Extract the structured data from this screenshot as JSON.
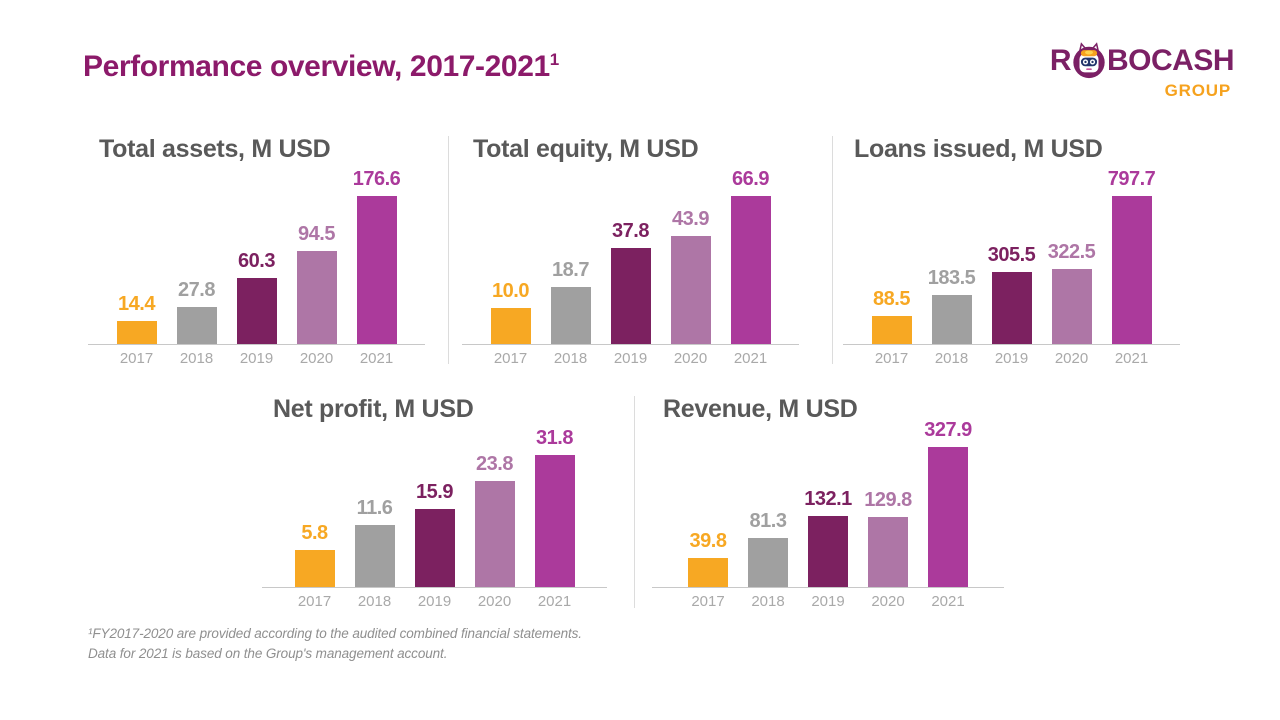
{
  "header": {
    "title": "Performance overview, 2017-2021",
    "title_superscript": "1"
  },
  "logo": {
    "wordmark_prefix": "R",
    "wordmark_suffix": "BOCASH",
    "subtitle": "GROUP",
    "wordmark_color": "#7B2065",
    "subtitle_color": "#F6A21E"
  },
  "footnote": {
    "line1": "¹FY2017-2020 are provided according to the audited combined financial statements.",
    "line2": "Data for 2021 is based on the Group's management account."
  },
  "colors": {
    "slide_title": "#8C1A6A",
    "chart_title": "#595959",
    "axis_line": "#C8C8C8",
    "year_label": "#A9A9A9",
    "divider": "#DCDCDC",
    "footnote": "#8F8F8F",
    "bar_palette": [
      "#F7A823",
      "#A0A0A0",
      "#7C2160",
      "#AE76A6",
      "#AB3A9B"
    ]
  },
  "chart_data": [
    {
      "type": "bar",
      "title": "Total assets, M USD",
      "categories": [
        "2017",
        "2018",
        "2019",
        "2020",
        "2021"
      ],
      "values": [
        14.4,
        27.8,
        60.3,
        94.5,
        176.6
      ],
      "ylim": [
        0,
        176.6
      ],
      "grid": false,
      "data_labels": true
    },
    {
      "type": "bar",
      "title": "Total equity, M USD",
      "categories": [
        "2017",
        "2018",
        "2019",
        "2020",
        "2021"
      ],
      "values": [
        10.0,
        18.7,
        37.8,
        43.9,
        66.9
      ],
      "ylim": [
        0,
        66.9
      ],
      "grid": false,
      "data_labels": true
    },
    {
      "type": "bar",
      "title": "Loans issued, M USD",
      "categories": [
        "2017",
        "2018",
        "2019",
        "2020",
        "2021"
      ],
      "values": [
        88.5,
        183.5,
        305.5,
        322.5,
        797.7
      ],
      "ylim": [
        0,
        797.7
      ],
      "grid": false,
      "data_labels": true
    },
    {
      "type": "bar",
      "title": "Net profit, M USD",
      "categories": [
        "2017",
        "2018",
        "2019",
        "2020",
        "2021"
      ],
      "values": [
        5.8,
        11.6,
        15.9,
        23.8,
        31.8
      ],
      "ylim": [
        0,
        31.8
      ],
      "grid": false,
      "data_labels": true
    },
    {
      "type": "bar",
      "title": "Revenue, M USD",
      "categories": [
        "2017",
        "2018",
        "2019",
        "2020",
        "2021"
      ],
      "values": [
        39.8,
        81.3,
        132.1,
        129.8,
        327.9
      ],
      "ylim": [
        0,
        327.9
      ],
      "grid": false,
      "data_labels": true
    }
  ]
}
